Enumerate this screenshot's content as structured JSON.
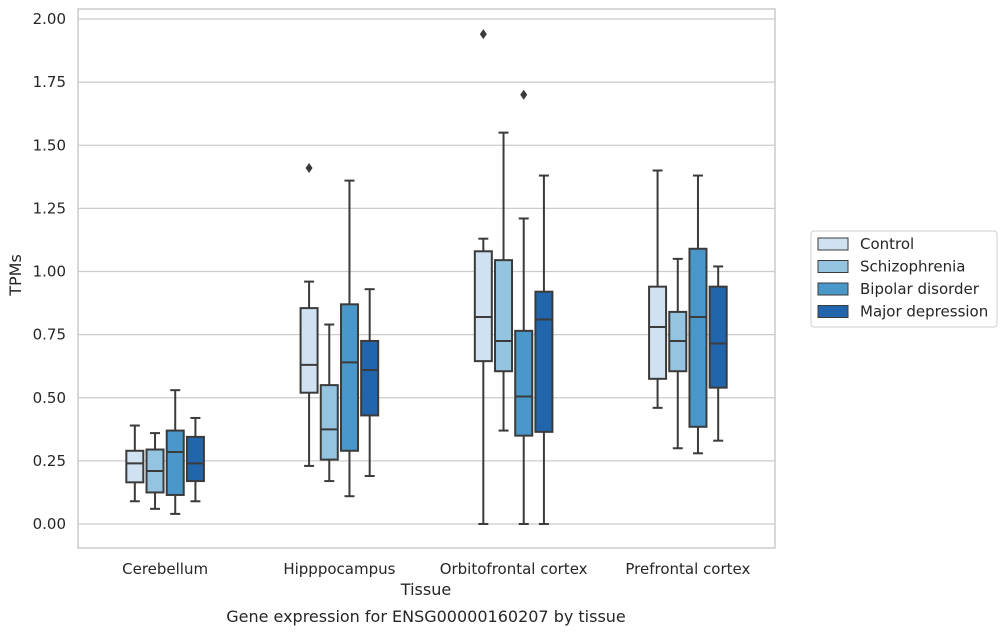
{
  "chart_data": {
    "type": "box",
    "title": "",
    "caption": "Gene expression for ENSG00000160207 by tissue",
    "xlabel": "Tissue",
    "ylabel": "TPMs",
    "ylim": [
      -0.1,
      2.04
    ],
    "yticks": [
      "0.00",
      "0.25",
      "0.50",
      "0.75",
      "1.00",
      "1.25",
      "1.50",
      "1.75",
      "2.00"
    ],
    "grid": "horizontal",
    "legend_position": "right",
    "categories": [
      "Cerebellum",
      "Hipppocampus",
      "Orbitofrontal cortex",
      "Prefrontal cortex"
    ],
    "series": [
      {
        "name": "Control",
        "color": "#d0e1f2",
        "boxes": [
          {
            "whisker_low": 0.09,
            "q1": 0.165,
            "median": 0.24,
            "q3": 0.29,
            "whisker_high": 0.39,
            "outliers": []
          },
          {
            "whisker_low": 0.23,
            "q1": 0.52,
            "median": 0.63,
            "q3": 0.855,
            "whisker_high": 0.96,
            "outliers": [
              1.41
            ]
          },
          {
            "whisker_low": 0.0,
            "q1": 0.645,
            "median": 0.82,
            "q3": 1.08,
            "whisker_high": 1.13,
            "outliers": [
              1.94
            ]
          },
          {
            "whisker_low": 0.46,
            "q1": 0.575,
            "median": 0.78,
            "q3": 0.94,
            "whisker_high": 1.4,
            "outliers": []
          }
        ]
      },
      {
        "name": "Schizophrenia",
        "color": "#94c4df",
        "boxes": [
          {
            "whisker_low": 0.06,
            "q1": 0.125,
            "median": 0.21,
            "q3": 0.295,
            "whisker_high": 0.36,
            "outliers": []
          },
          {
            "whisker_low": 0.17,
            "q1": 0.255,
            "median": 0.375,
            "q3": 0.55,
            "whisker_high": 0.79,
            "outliers": []
          },
          {
            "whisker_low": 0.37,
            "q1": 0.605,
            "median": 0.725,
            "q3": 1.045,
            "whisker_high": 1.55,
            "outliers": []
          },
          {
            "whisker_low": 0.3,
            "q1": 0.605,
            "median": 0.725,
            "q3": 0.84,
            "whisker_high": 1.05,
            "outliers": []
          }
        ]
      },
      {
        "name": "Bipolar disorder",
        "color": "#4a98c9",
        "boxes": [
          {
            "whisker_low": 0.04,
            "q1": 0.115,
            "median": 0.285,
            "q3": 0.37,
            "whisker_high": 0.53,
            "outliers": []
          },
          {
            "whisker_low": 0.11,
            "q1": 0.29,
            "median": 0.64,
            "q3": 0.87,
            "whisker_high": 1.36,
            "outliers": []
          },
          {
            "whisker_low": 0.0,
            "q1": 0.35,
            "median": 0.505,
            "q3": 0.765,
            "whisker_high": 1.21,
            "outliers": [
              1.7
            ]
          },
          {
            "whisker_low": 0.28,
            "q1": 0.385,
            "median": 0.82,
            "q3": 1.09,
            "whisker_high": 1.38,
            "outliers": []
          }
        ]
      },
      {
        "name": "Major depression",
        "color": "#2166ac",
        "boxes": [
          {
            "whisker_low": 0.09,
            "q1": 0.17,
            "median": 0.24,
            "q3": 0.345,
            "whisker_high": 0.42,
            "outliers": []
          },
          {
            "whisker_low": 0.19,
            "q1": 0.43,
            "median": 0.61,
            "q3": 0.725,
            "whisker_high": 0.93,
            "outliers": []
          },
          {
            "whisker_low": 0.0,
            "q1": 0.365,
            "median": 0.81,
            "q3": 0.92,
            "whisker_high": 1.38,
            "outliers": []
          },
          {
            "whisker_low": 0.33,
            "q1": 0.54,
            "median": 0.715,
            "q3": 0.94,
            "whisker_high": 1.02,
            "outliers": []
          }
        ]
      }
    ]
  },
  "colors": {
    "grid": "#cccccc",
    "box_edge": "#3b3b3b",
    "text": "#262626"
  }
}
